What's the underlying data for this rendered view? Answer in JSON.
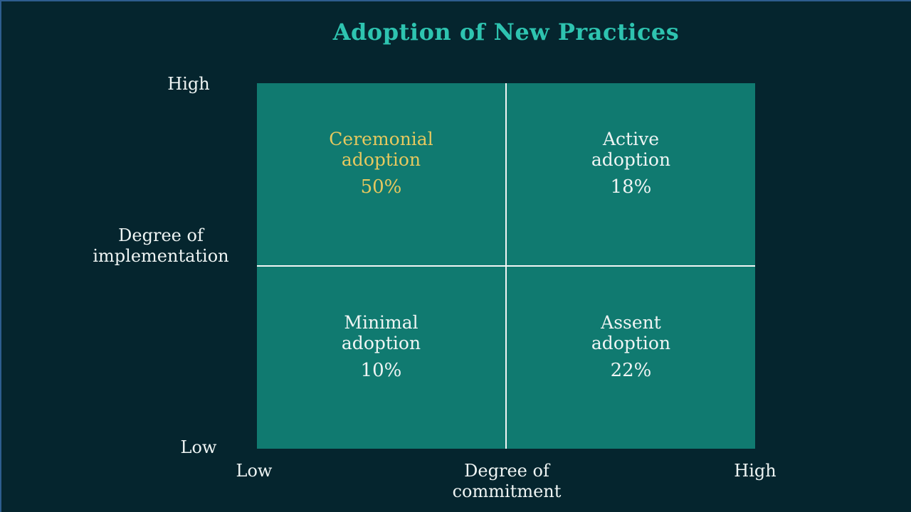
{
  "slide": {
    "title": "Adoption of New Practices",
    "colors": {
      "background": "#05252e",
      "slide_border": "#2e5d8e",
      "quadrant_fill": "#107a70",
      "divider_line": "#f2f6f5",
      "title_accent": "#2ec4b0",
      "highlight_text": "#e6c85e",
      "body_text": "#eef4f3"
    },
    "y_axis": {
      "title_line1": "Degree of",
      "title_line2": "implementation",
      "high": "High",
      "low": "Low"
    },
    "x_axis": {
      "title_line1": "Degree of",
      "title_line2": "commitment",
      "high": "High",
      "low": "Low"
    },
    "quadrants": [
      {
        "position": "top-left",
        "line1": "Ceremonial",
        "line2": "adoption",
        "value": "50%",
        "highlighted": true
      },
      {
        "position": "top-right",
        "line1": "Active",
        "line2": "adoption",
        "value": "18%",
        "highlighted": false
      },
      {
        "position": "bottom-left",
        "line1": "Minimal",
        "line2": "adoption",
        "value": "10%",
        "highlighted": false
      },
      {
        "position": "bottom-right",
        "line1": "Assent",
        "line2": "adoption",
        "value": "22%",
        "highlighted": false
      }
    ]
  },
  "chart_data": {
    "type": "table",
    "title": "Adoption of New Practices",
    "xlabel": "Degree of commitment",
    "ylabel": "Degree of implementation",
    "x_range": [
      "Low",
      "High"
    ],
    "y_range": [
      "Low",
      "High"
    ],
    "quadrants": [
      {
        "x": "Low",
        "y": "High",
        "label": "Ceremonial adoption",
        "value_pct": 50,
        "highlighted": true
      },
      {
        "x": "High",
        "y": "High",
        "label": "Active adoption",
        "value_pct": 18,
        "highlighted": false
      },
      {
        "x": "Low",
        "y": "Low",
        "label": "Minimal adoption",
        "value_pct": 10,
        "highlighted": false
      },
      {
        "x": "High",
        "y": "Low",
        "label": "Assent adoption",
        "value_pct": 22,
        "highlighted": false
      }
    ],
    "legend": false,
    "grid": false
  }
}
